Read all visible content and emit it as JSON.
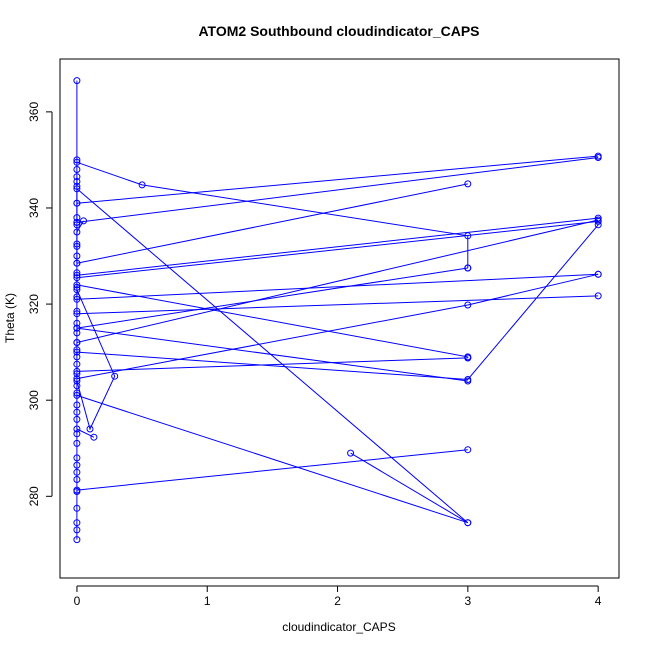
{
  "chart_data": {
    "type": "line",
    "title": "ATOM2 Southbound cloudindicator_CAPS",
    "xlabel": "cloudindicator_CAPS",
    "ylabel": "Theta (K)",
    "xlim": [
      -0.13,
      4.16
    ],
    "ylim": [
      263,
      371
    ],
    "x_ticks": [
      0,
      1,
      2,
      3,
      4
    ],
    "y_ticks": [
      280,
      300,
      320,
      340,
      360
    ],
    "grid": false,
    "color": "#0000ff",
    "markers": "open-circle",
    "series": [
      {
        "x": [
          0,
          0,
          0,
          0,
          0
        ],
        "y": [
          366.5,
          350.0,
          348.0,
          341.0,
          337.0
        ]
      },
      {
        "x": [
          0,
          4
        ],
        "y": [
          341.0,
          350.8
        ]
      },
      {
        "x": [
          0,
          4
        ],
        "y": [
          337.0,
          350.5
        ]
      },
      {
        "x": [
          0,
          0.5,
          3,
          3
        ],
        "y": [
          349.5,
          344.8,
          334.2,
          327.5
        ]
      },
      {
        "x": [
          0,
          3
        ],
        "y": [
          344.0,
          274.5
        ]
      },
      {
        "x": [
          0.05,
          0,
          0,
          0
        ],
        "y": [
          337.3,
          335.0,
          332.0,
          328.5
        ]
      },
      {
        "x": [
          0,
          3
        ],
        "y": [
          328.5,
          345.0
        ]
      },
      {
        "x": [
          0,
          4
        ],
        "y": [
          326.0,
          337.9
        ]
      },
      {
        "x": [
          0,
          4
        ],
        "y": [
          325.5,
          337.2
        ]
      },
      {
        "x": [
          0,
          3
        ],
        "y": [
          315.0,
          327.5
        ]
      },
      {
        "x": [
          0,
          4
        ],
        "y": [
          312.0,
          337.5
        ]
      },
      {
        "x": [
          0,
          3,
          3
        ],
        "y": [
          324.0,
          309.0,
          308.8
        ]
      },
      {
        "x": [
          0,
          4
        ],
        "y": [
          321.0,
          326.2
        ]
      },
      {
        "x": [
          0,
          4
        ],
        "y": [
          318.0,
          321.7
        ]
      },
      {
        "x": [
          0,
          3,
          4
        ],
        "y": [
          304.5,
          319.8,
          326.2
        ]
      },
      {
        "x": [
          0,
          3
        ],
        "y": [
          315.0,
          304.0
        ]
      },
      {
        "x": [
          0,
          3,
          4
        ],
        "y": [
          310.0,
          304.3,
          336.5
        ]
      },
      {
        "x": [
          0,
          3
        ],
        "y": [
          306.0,
          308.8
        ]
      },
      {
        "x": [
          0,
          0.29,
          0.1,
          0
        ],
        "y": [
          323.0,
          305.0,
          294.0,
          304.0
        ]
      },
      {
        "x": [
          0,
          0.13
        ],
        "y": [
          294.0,
          292.3
        ]
      },
      {
        "x": [
          0,
          3,
          2.1
        ],
        "y": [
          301.0,
          274.5,
          289.0
        ]
      },
      {
        "x": [
          0,
          3
        ],
        "y": [
          281.3,
          289.7
        ]
      },
      {
        "x": [
          0,
          0,
          0,
          0,
          0,
          0,
          0,
          0,
          0,
          0,
          0,
          0,
          0,
          0,
          0,
          0,
          0,
          0,
          0,
          0,
          0,
          0,
          0,
          0,
          0,
          0,
          0,
          0,
          0,
          0,
          0,
          0,
          0,
          0
        ],
        "y": [
          346.5,
          345.5,
          344.5,
          338.0,
          336.5,
          332.5,
          330.0,
          326.5,
          323.5,
          321.5,
          318.5,
          316.0,
          314.0,
          312.0,
          310.5,
          309.0,
          307.5,
          305.5,
          303.0,
          301.5,
          299.0,
          297.5,
          296.0,
          293.0,
          291.0,
          288.0,
          286.5,
          285.0,
          283.5,
          281.0,
          277.5,
          274.5,
          273.0,
          271.0
        ]
      }
    ]
  }
}
